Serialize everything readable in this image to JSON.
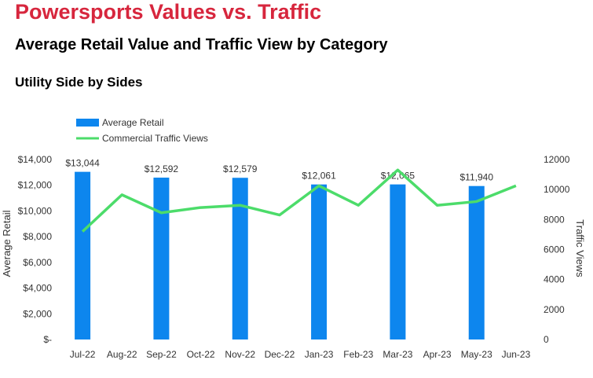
{
  "headline": "Powersports Values vs. Traffic",
  "subtitle": "Average Retail Value and Traffic View by Category",
  "category_title": "Utility Side by Sides",
  "colors": {
    "headline": "#d7263d",
    "bar": "#0d86ee",
    "line": "#4cdc6a"
  },
  "chart_data": {
    "type": "bar+line",
    "categories": [
      "Jul-22",
      "Aug-22",
      "Sep-22",
      "Oct-22",
      "Nov-22",
      "Dec-22",
      "Jan-23",
      "Feb-23",
      "Mar-23",
      "Apr-23",
      "May-23",
      "Jun-23"
    ],
    "series": [
      {
        "name": "Average Retail",
        "type": "bar",
        "axis": "left",
        "values": [
          13044,
          null,
          12592,
          null,
          12579,
          null,
          12061,
          null,
          12065,
          null,
          11940,
          null
        ],
        "data_labels": [
          "$13,044",
          null,
          "$12,592",
          null,
          "$12,579",
          null,
          "$12,061",
          null,
          "$12,065",
          null,
          "$11,940",
          null
        ]
      },
      {
        "name": "Commercial Traffic Views",
        "type": "line",
        "axis": "right",
        "values": [
          7200,
          9650,
          8450,
          8800,
          8950,
          8300,
          10250,
          8950,
          11300,
          8950,
          9200,
          10250
        ]
      }
    ],
    "y_left": {
      "label": "Average Retail",
      "range": [
        0,
        14000
      ],
      "ticks": [
        0,
        2000,
        4000,
        6000,
        8000,
        10000,
        12000,
        14000
      ],
      "tick_labels": [
        "$-",
        "$2,000",
        "$4,000",
        "$6,000",
        "$8,000",
        "$10,000",
        "$12,000",
        "$14,000"
      ]
    },
    "y_right": {
      "label": "Traffic Views",
      "range": [
        0,
        12000
      ],
      "ticks": [
        0,
        2000,
        4000,
        6000,
        8000,
        10000,
        12000
      ],
      "tick_labels": [
        "0",
        "2000",
        "4000",
        "6000",
        "8000",
        "10000",
        "12000"
      ]
    },
    "legend": [
      "Average Retail",
      "Commercial Traffic Views"
    ],
    "legend_position": "top-left",
    "grid": false
  }
}
